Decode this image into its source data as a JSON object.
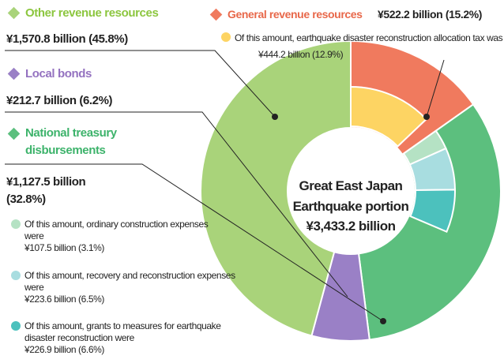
{
  "chart_data": {
    "type": "donut",
    "center_label": [
      "Great East Japan",
      "Earthquake portion",
      "¥3,433.2 billion"
    ],
    "segments": [
      {
        "name": "General revenue resources",
        "value": 15.2,
        "value_label": "¥522.2 billion (15.2%)",
        "color": "#f07a5e",
        "details": [
          {
            "text": "Of this amount, earthquake disaster reconstruction allocation tax was",
            "value": 12.9,
            "value_label": "¥444.2 billion (12.9%)",
            "color": "#fdd463"
          }
        ]
      },
      {
        "name": "National treasury disbursements",
        "value": 32.8,
        "value_label": "¥1,127.5 billion (32.8%)",
        "color": "#5cbf7e",
        "details": [
          {
            "text": "Of this amount, ordinary construction expenses were",
            "value": 3.1,
            "value_label": "¥107.5 billion (3.1%)",
            "color": "#b5e2c4"
          },
          {
            "text": "Of this amount, recovery and reconstruction expenses were",
            "value": 6.5,
            "value_label": "¥223.6 billion (6.5%)",
            "color": "#a8dde0"
          },
          {
            "text": "Of this amount, grants to measures for earthquake disaster reconstruction were",
            "value": 6.6,
            "value_label": "¥226.9 billion (6.6%)",
            "color": "#4cc1bd"
          }
        ]
      },
      {
        "name": "Local bonds",
        "value": 6.2,
        "value_label": "¥212.7 billion (6.2%)",
        "color": "#9a80c6",
        "details": []
      },
      {
        "name": "Other revenue resources",
        "value": 45.8,
        "value_label": "¥1,570.8 billion (45.8%)",
        "color": "#a9d37a",
        "details": []
      }
    ]
  }
}
